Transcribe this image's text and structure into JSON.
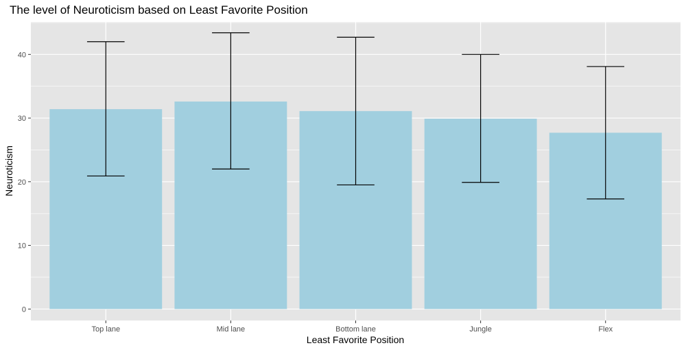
{
  "chart_data": {
    "type": "bar",
    "title": "The level of Neuroticism based on Least Favorite Position",
    "xlabel": "Least Favorite Position",
    "ylabel": "Neuroticism",
    "categories": [
      "Top lane",
      "Mid lane",
      "Bottom lane",
      "Jungle",
      "Flex"
    ],
    "values": [
      31.4,
      32.6,
      31.1,
      29.9,
      27.7
    ],
    "error_bars": {
      "lower": [
        20.9,
        22.0,
        19.5,
        19.9,
        17.3
      ],
      "upper": [
        42.0,
        43.4,
        42.7,
        40.0,
        38.1
      ]
    },
    "ylim": [
      -1.8,
      45.1
    ],
    "yticks": [
      0,
      10,
      20,
      30,
      40
    ],
    "grid": true,
    "legend": "none",
    "colors": {
      "bar": "#a1cfdf",
      "panel_background": "#e5e5e5",
      "grid": "#ffffff",
      "error_bar": "#000000"
    }
  }
}
